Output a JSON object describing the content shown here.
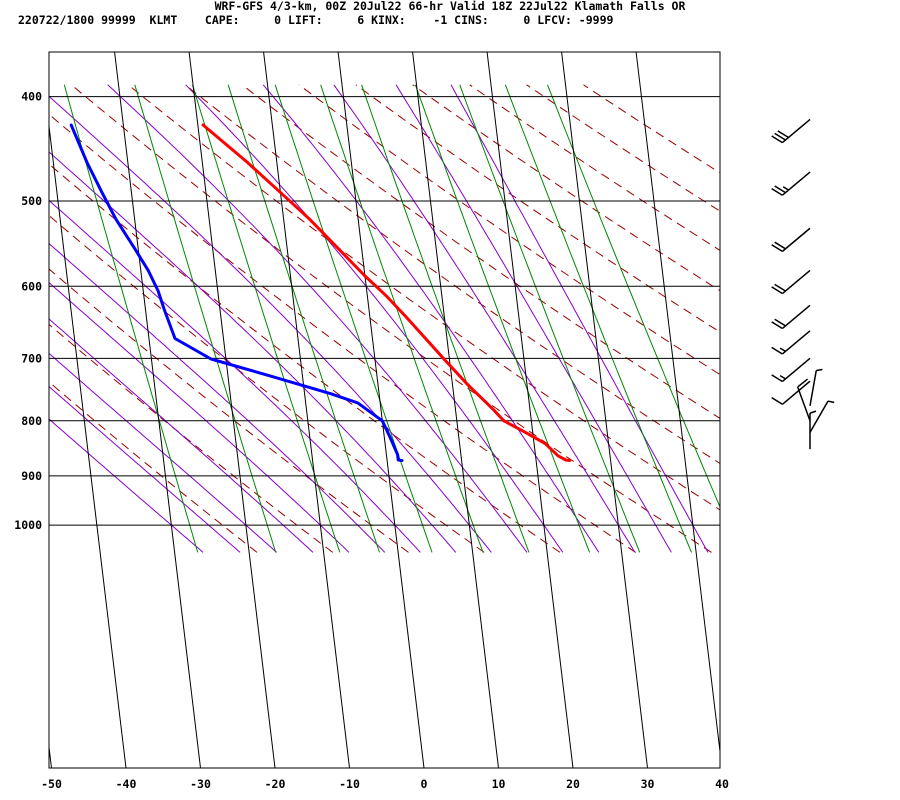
{
  "header": {
    "line1": "WRF-GFS 4/3-km, 00Z 20Jul22 66-hr Valid 18Z 22Jul22 Klamath Falls OR",
    "line2": "220722/1800 99999  KLMT    CAPE:     0 LIFT:     6 KINX:    -1 CINS:     0 LFCV: -9999"
  },
  "chart_data": {
    "type": "line",
    "subtype": "skew-t sounding",
    "x_ticks": [
      -50,
      -40,
      -30,
      -20,
      -10,
      0,
      10,
      20,
      30,
      40
    ],
    "y_ticks": [
      400,
      500,
      600,
      700,
      800,
      900,
      1000
    ],
    "xlim": [
      -50,
      40
    ],
    "ylim": [
      400,
      1050
    ],
    "y_scale": "log",
    "grid": true,
    "colors": {
      "temperature": "#ff0000",
      "dewpoint": "#0000ff",
      "dry_adiabat": "#990000",
      "moist_adiabat": "#8800cc",
      "mixing_ratio": "#008800",
      "isotherm": "#000000"
    },
    "series": [
      {
        "key": "temperature",
        "points": [
          [
            -19.3,
            425
          ],
          [
            -14,
            460
          ],
          [
            -10.5,
            487
          ],
          [
            -6.5,
            520
          ],
          [
            -3,
            555
          ],
          [
            0,
            587
          ],
          [
            2.5,
            612
          ],
          [
            4.8,
            640
          ],
          [
            7,
            669
          ],
          [
            9.4,
            703
          ],
          [
            12,
            740
          ],
          [
            15,
            780
          ],
          [
            16.3,
            800
          ],
          [
            19,
            820
          ],
          [
            21.5,
            840
          ],
          [
            23,
            862
          ],
          [
            24,
            870
          ],
          [
            24.5,
            871
          ]
        ]
      },
      {
        "key": "dewpoint",
        "points": [
          [
            -37,
            425
          ],
          [
            -35.5,
            460
          ],
          [
            -34,
            490
          ],
          [
            -32.5,
            520
          ],
          [
            -30.5,
            553
          ],
          [
            -29,
            580
          ],
          [
            -28,
            606
          ],
          [
            -27.5,
            630
          ],
          [
            -26.5,
            671
          ],
          [
            -22,
            701
          ],
          [
            -14,
            728
          ],
          [
            -6.5,
            755
          ],
          [
            -3,
            770
          ],
          [
            -1.5,
            785
          ],
          [
            0,
            800
          ],
          [
            0.8,
            830
          ],
          [
            1.5,
            860
          ],
          [
            1.5,
            870
          ],
          [
            2,
            871
          ]
        ]
      }
    ],
    "wind_barbs": [
      {
        "pressure": 420,
        "speed_kt": 30,
        "dir_deg": 230
      },
      {
        "pressure": 470,
        "speed_kt": 25,
        "dir_deg": 230
      },
      {
        "pressure": 530,
        "speed_kt": 20,
        "dir_deg": 230
      },
      {
        "pressure": 580,
        "speed_kt": 20,
        "dir_deg": 230
      },
      {
        "pressure": 625,
        "speed_kt": 20,
        "dir_deg": 230
      },
      {
        "pressure": 660,
        "speed_kt": 15,
        "dir_deg": 230
      },
      {
        "pressure": 700,
        "speed_kt": 15,
        "dir_deg": 230
      },
      {
        "pressure": 735,
        "speed_kt": 10,
        "dir_deg": 230
      },
      {
        "pressure": 775,
        "speed_kt": 5,
        "dir_deg": 10
      },
      {
        "pressure": 800,
        "speed_kt": 10,
        "dir_deg": 340
      },
      {
        "pressure": 820,
        "speed_kt": 5,
        "dir_deg": 30
      },
      {
        "pressure": 850,
        "speed_kt": 5,
        "dir_deg": 0
      }
    ]
  }
}
